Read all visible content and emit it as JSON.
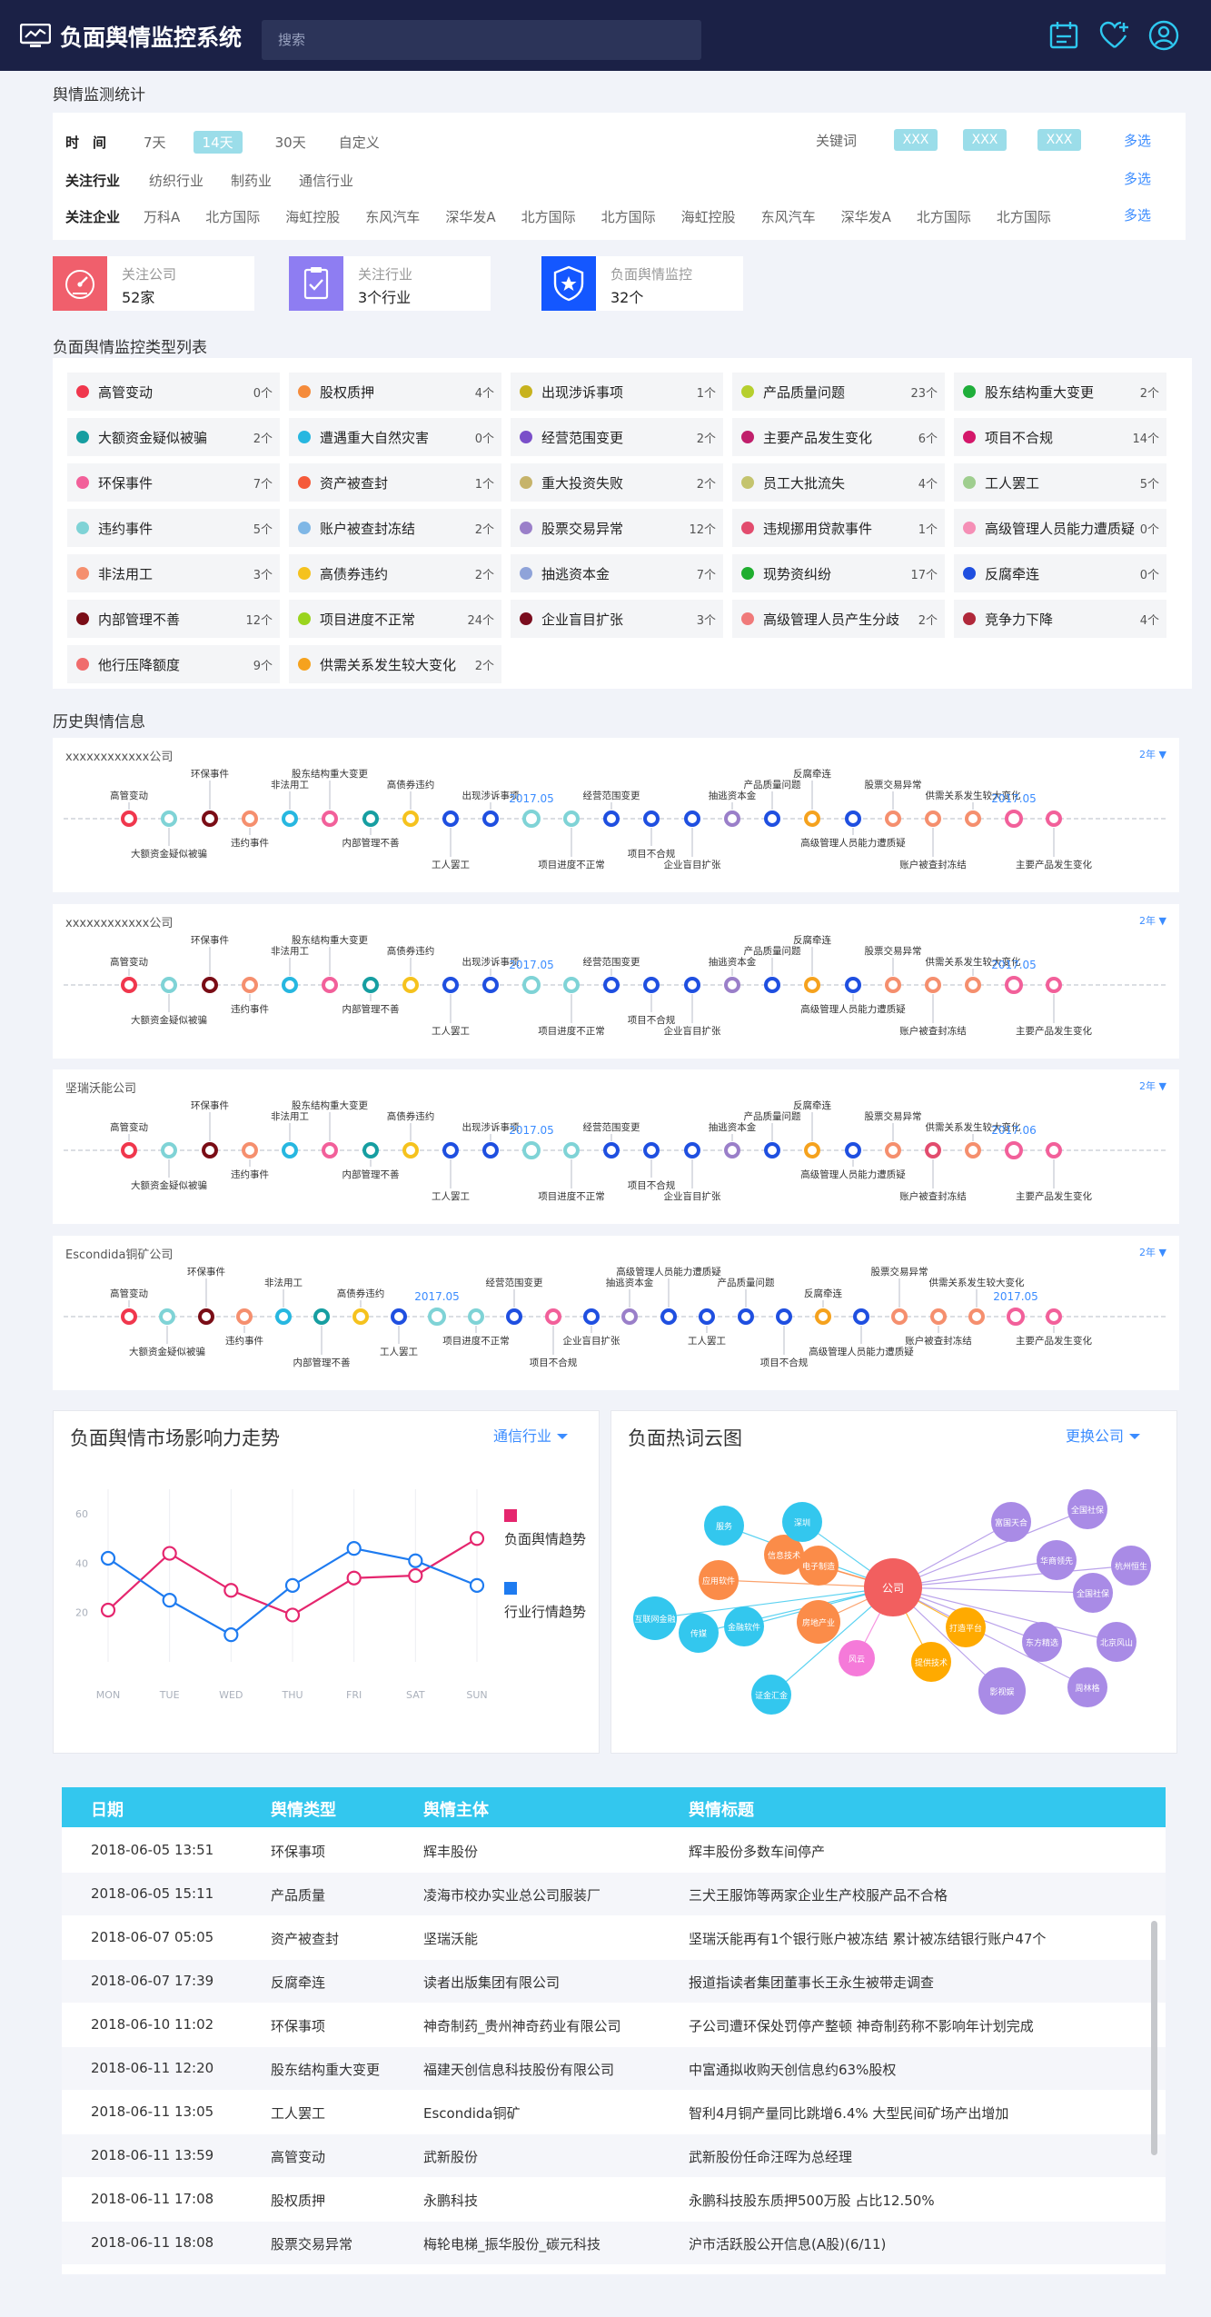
{
  "header": {
    "title": "负面舆情监控系统",
    "search_placeholder": "搜索",
    "icons": [
      "calendar-icon",
      "favorite-add-icon",
      "user-icon"
    ]
  },
  "stats_section": {
    "title": "舆情监测统计"
  },
  "filters": {
    "time": {
      "label": "时　间",
      "options": [
        "7天",
        "14天",
        "30天",
        "自定义"
      ],
      "selected": "14天"
    },
    "keyword": {
      "label": "关键词",
      "values": [
        "XXX",
        "XXX",
        "XXX"
      ],
      "more": "多选"
    },
    "industry": {
      "label": "关注行业",
      "options": [
        "纺织行业",
        "制药业",
        "通信行业"
      ],
      "more": "多选"
    },
    "company": {
      "label": "关注企业",
      "options": [
        "万科A",
        "北方国际",
        "海虹控股",
        "东风汽车",
        "深华发A",
        "北方国际",
        "北方国际",
        "海虹控股",
        "东风汽车",
        "深华发A",
        "北方国际",
        "北方国际"
      ],
      "more": "多选"
    }
  },
  "stat_cards": [
    {
      "label": "关注公司",
      "value": "52家",
      "color": "#f05f6c",
      "icon": "gauge-icon"
    },
    {
      "label": "关注行业",
      "value": "3个行业",
      "color": "#8e7df2",
      "icon": "clipboard-icon"
    },
    {
      "label": "负面舆情监控",
      "value": "32个",
      "color": "#1457ff",
      "icon": "shield-icon"
    }
  ],
  "types_section": {
    "title": "负面舆情监控类型列表"
  },
  "types": [
    {
      "name": "高管变动",
      "count": "0个",
      "color": "#f0374d"
    },
    {
      "name": "股权质押",
      "count": "4个",
      "color": "#f58b3b"
    },
    {
      "name": "出现涉诉事项",
      "count": "1个",
      "color": "#c7b21e"
    },
    {
      "name": "产品质量问题",
      "count": "23个",
      "color": "#b6cf2e"
    },
    {
      "name": "股东结构重大变更",
      "count": "2个",
      "color": "#1fae3a"
    },
    {
      "name": "大额资金疑似被骗",
      "count": "2个",
      "color": "#169ea1"
    },
    {
      "name": "遭遇重大自然灾害",
      "count": "0个",
      "color": "#27b7e0"
    },
    {
      "name": "经营范围变更",
      "count": "2个",
      "color": "#7a4fc9"
    },
    {
      "name": "主要产品发生变化",
      "count": "6个",
      "color": "#c01f6b"
    },
    {
      "name": "项目不合规",
      "count": "14个",
      "color": "#d4176a"
    },
    {
      "name": "环保事件",
      "count": "7个",
      "color": "#f2609a"
    },
    {
      "name": "资产被查封",
      "count": "1个",
      "color": "#f55a3a"
    },
    {
      "name": "重大投资失败",
      "count": "2个",
      "color": "#c6b36a"
    },
    {
      "name": "员工大批流失",
      "count": "4个",
      "color": "#c4c46e"
    },
    {
      "name": "工人罢工",
      "count": "5个",
      "color": "#9fce8f"
    },
    {
      "name": "违约事件",
      "count": "5个",
      "color": "#7fd3d6"
    },
    {
      "name": "账户被查封冻结",
      "count": "2个",
      "color": "#7fb7e6"
    },
    {
      "name": "股票交易异常",
      "count": "12个",
      "color": "#9a7fc9"
    },
    {
      "name": "违规挪用贷款事件",
      "count": "1个",
      "color": "#e24c6e"
    },
    {
      "name": "高级管理人员能力遭质疑",
      "count": "0个",
      "color": "#f58fb6"
    },
    {
      "name": "非法用工",
      "count": "3个",
      "color": "#f58f6e"
    },
    {
      "name": "高债券违约",
      "count": "2个",
      "color": "#f5c21e"
    },
    {
      "name": "抽逃资本金",
      "count": "7个",
      "color": "#8fa3d9"
    },
    {
      "name": "现势资纠纷",
      "count": "17个",
      "color": "#1fae2f"
    },
    {
      "name": "反腐牵连",
      "count": "0个",
      "color": "#1f4fe0"
    },
    {
      "name": "内部管理不善",
      "count": "12个",
      "color": "#7a0d16"
    },
    {
      "name": "项目进度不正常",
      "count": "24个",
      "color": "#9ad41e"
    },
    {
      "name": "企业盲目扩张",
      "count": "3个",
      "color": "#7a0d1e"
    },
    {
      "name": "高级管理人员产生分歧",
      "count": "2个",
      "color": "#f07a7a"
    },
    {
      "name": "竞争力下降",
      "count": "4个",
      "color": "#b0283a"
    },
    {
      "name": "他行压降额度",
      "count": "9个",
      "color": "#f06c6c"
    },
    {
      "name": "供需关系发生较大变化",
      "count": "2个",
      "color": "#f5a21e"
    }
  ],
  "history_section": {
    "title": "历史舆情信息"
  },
  "timelines": [
    {
      "company": "xxxxxxxxxxxx公司",
      "range": "2年 ▼",
      "events": [
        {
          "label": "高管变动",
          "pos": "up",
          "color": "#f0374d"
        },
        {
          "label": "大额资金疑似被骗",
          "pos": "down",
          "color": "#7fd3d6"
        },
        {
          "label": "环保事件",
          "pos": "up",
          "color": "#7a0d16"
        },
        {
          "label": "违约事件",
          "pos": "down",
          "color": "#f58f6e"
        },
        {
          "label": "非法用工",
          "pos": "up",
          "color": "#27b7e0"
        },
        {
          "label": "股东结构重大变更",
          "pos": "up",
          "color": "#f2609a"
        },
        {
          "label": "内部管理不善",
          "pos": "down",
          "color": "#169ea1"
        },
        {
          "label": "高债券违约",
          "pos": "up",
          "color": "#f5c21e"
        },
        {
          "label": "工人罢工",
          "pos": "down",
          "color": "#1f4fe0"
        },
        {
          "label": "出现涉诉事项",
          "pos": "up",
          "color": "#1f4fe0"
        },
        {
          "label": "2017.05",
          "pos": "date",
          "color": "#7fd3d6"
        },
        {
          "label": "项目进度不正常",
          "pos": "down",
          "color": "#7fd3d6"
        },
        {
          "label": "经营范围变更",
          "pos": "up",
          "color": "#1f4fe0"
        },
        {
          "label": "项目不合规",
          "pos": "down",
          "color": "#1f4fe0"
        },
        {
          "label": "企业盲目扩张",
          "pos": "down",
          "color": "#1f4fe0"
        },
        {
          "label": "抽逃资本金",
          "pos": "up",
          "color": "#9a7fc9"
        },
        {
          "label": "产品质量问题",
          "pos": "up",
          "color": "#1f4fe0"
        },
        {
          "label": "反腐牵连",
          "pos": "up",
          "color": "#f5a21e"
        },
        {
          "label": "高级管理人员能力遭质疑",
          "pos": "down",
          "color": "#1f4fe0"
        },
        {
          "label": "股票交易异常",
          "pos": "up",
          "color": "#f58f6e"
        },
        {
          "label": "账户被查封冻结",
          "pos": "down",
          "color": "#f58f6e"
        },
        {
          "label": "供需关系发生较大变化",
          "pos": "up",
          "color": "#f58f6e"
        },
        {
          "label": "2017.05",
          "pos": "date",
          "color": "#f2609a"
        },
        {
          "label": "主要产品发生变化",
          "pos": "down",
          "color": "#f2609a"
        }
      ]
    },
    {
      "company": "xxxxxxxxxxxx公司",
      "range": "2年 ▼",
      "events": [
        {
          "label": "高管变动",
          "pos": "up",
          "color": "#f0374d"
        },
        {
          "label": "大额资金疑似被骗",
          "pos": "down",
          "color": "#7fd3d6"
        },
        {
          "label": "环保事件",
          "pos": "up",
          "color": "#7a0d16"
        },
        {
          "label": "违约事件",
          "pos": "down",
          "color": "#f58f6e"
        },
        {
          "label": "非法用工",
          "pos": "up",
          "color": "#27b7e0"
        },
        {
          "label": "股东结构重大变更",
          "pos": "up",
          "color": "#f2609a"
        },
        {
          "label": "内部管理不善",
          "pos": "down",
          "color": "#169ea1"
        },
        {
          "label": "高债券违约",
          "pos": "up",
          "color": "#f5c21e"
        },
        {
          "label": "工人罢工",
          "pos": "down",
          "color": "#1f4fe0"
        },
        {
          "label": "出现涉诉事项",
          "pos": "up",
          "color": "#1f4fe0"
        },
        {
          "label": "2017.05",
          "pos": "date",
          "color": "#7fd3d6"
        },
        {
          "label": "项目进度不正常",
          "pos": "down",
          "color": "#7fd3d6"
        },
        {
          "label": "经营范围变更",
          "pos": "up",
          "color": "#1f4fe0"
        },
        {
          "label": "项目不合规",
          "pos": "down",
          "color": "#1f4fe0"
        },
        {
          "label": "企业盲目扩张",
          "pos": "down",
          "color": "#1f4fe0"
        },
        {
          "label": "抽逃资本金",
          "pos": "up",
          "color": "#9a7fc9"
        },
        {
          "label": "产品质量问题",
          "pos": "up",
          "color": "#1f4fe0"
        },
        {
          "label": "反腐牵连",
          "pos": "up",
          "color": "#f5a21e"
        },
        {
          "label": "高级管理人员能力遭质疑",
          "pos": "down",
          "color": "#1f4fe0"
        },
        {
          "label": "股票交易异常",
          "pos": "up",
          "color": "#f58f6e"
        },
        {
          "label": "账户被查封冻结",
          "pos": "down",
          "color": "#f58f6e"
        },
        {
          "label": "供需关系发生较大变化",
          "pos": "up",
          "color": "#f58f6e"
        },
        {
          "label": "2017.05",
          "pos": "date",
          "color": "#f2609a"
        },
        {
          "label": "主要产品发生变化",
          "pos": "down",
          "color": "#f2609a"
        }
      ]
    },
    {
      "company": "坚瑞沃能公司",
      "range": "2年 ▼",
      "events": [
        {
          "label": "高管变动",
          "pos": "up",
          "color": "#f0374d"
        },
        {
          "label": "大额资金疑似被骗",
          "pos": "down",
          "color": "#7fd3d6"
        },
        {
          "label": "环保事件",
          "pos": "up",
          "color": "#7a0d16"
        },
        {
          "label": "违约事件",
          "pos": "down",
          "color": "#f58f6e"
        },
        {
          "label": "非法用工",
          "pos": "up",
          "color": "#27b7e0"
        },
        {
          "label": "股东结构重大变更",
          "pos": "up",
          "color": "#f2609a"
        },
        {
          "label": "内部管理不善",
          "pos": "down",
          "color": "#169ea1"
        },
        {
          "label": "高债券违约",
          "pos": "up",
          "color": "#f5c21e"
        },
        {
          "label": "工人罢工",
          "pos": "down",
          "color": "#1f4fe0"
        },
        {
          "label": "出现涉诉事项",
          "pos": "up",
          "color": "#1f4fe0"
        },
        {
          "label": "2017.05",
          "pos": "date",
          "color": "#7fd3d6"
        },
        {
          "label": "项目进度不正常",
          "pos": "down",
          "color": "#7fd3d6"
        },
        {
          "label": "经营范围变更",
          "pos": "up",
          "color": "#1f4fe0"
        },
        {
          "label": "项目不合规",
          "pos": "down",
          "color": "#1f4fe0"
        },
        {
          "label": "企业盲目扩张",
          "pos": "down",
          "color": "#1f4fe0"
        },
        {
          "label": "抽逃资本金",
          "pos": "up",
          "color": "#9a7fc9"
        },
        {
          "label": "产品质量问题",
          "pos": "up",
          "color": "#1f4fe0"
        },
        {
          "label": "反腐牵连",
          "pos": "up",
          "color": "#f5a21e"
        },
        {
          "label": "高级管理人员能力遭质疑",
          "pos": "down",
          "color": "#1f4fe0"
        },
        {
          "label": "股票交易异常",
          "pos": "up",
          "color": "#f58f6e"
        },
        {
          "label": "账户被查封冻结",
          "pos": "down",
          "color": "#e24c6e"
        },
        {
          "label": "供需关系发生较大变化",
          "pos": "up",
          "color": "#f58f6e"
        },
        {
          "label": "2017.06",
          "pos": "date",
          "color": "#f2609a"
        },
        {
          "label": "主要产品发生变化",
          "pos": "down",
          "color": "#f2609a"
        }
      ]
    },
    {
      "company": "Escondida铜矿公司",
      "range": "2年 ▼",
      "events": [
        {
          "label": "高管变动",
          "pos": "up",
          "color": "#f0374d"
        },
        {
          "label": "大额资金疑似被骗",
          "pos": "down",
          "color": "#7fd3d6"
        },
        {
          "label": "环保事件",
          "pos": "up",
          "color": "#7a0d16"
        },
        {
          "label": "违约事件",
          "pos": "down",
          "color": "#f58f6e"
        },
        {
          "label": "非法用工",
          "pos": "up",
          "color": "#27b7e0"
        },
        {
          "label": "内部管理不善",
          "pos": "down",
          "color": "#169ea1"
        },
        {
          "label": "高债券违约",
          "pos": "up",
          "color": "#f5c21e"
        },
        {
          "label": "工人罢工",
          "pos": "down",
          "color": "#1f4fe0"
        },
        {
          "label": "2017.05",
          "pos": "date",
          "color": "#7fd3d6"
        },
        {
          "label": "项目进度不正常",
          "pos": "down",
          "color": "#7fd3d6"
        },
        {
          "label": "经营范围变更",
          "pos": "up",
          "color": "#1f4fe0"
        },
        {
          "label": "项目不合规",
          "pos": "down",
          "color": "#f2609a"
        },
        {
          "label": "企业盲目扩张",
          "pos": "down",
          "color": "#1f4fe0"
        },
        {
          "label": "抽逃资本金",
          "pos": "up",
          "color": "#9a7fc9"
        },
        {
          "label": "高级管理人员能力遭质疑",
          "pos": "up",
          "color": "#1f4fe0"
        },
        {
          "label": "工人罢工",
          "pos": "down",
          "color": "#1f4fe0"
        },
        {
          "label": "产品质量问题",
          "pos": "up",
          "color": "#1f4fe0"
        },
        {
          "label": "项目不合规",
          "pos": "down",
          "color": "#1f4fe0"
        },
        {
          "label": "反腐牵连",
          "pos": "up",
          "color": "#f5a21e"
        },
        {
          "label": "高级管理人员能力遭质疑",
          "pos": "down",
          "color": "#1f4fe0"
        },
        {
          "label": "股票交易异常",
          "pos": "up",
          "color": "#f58f6e"
        },
        {
          "label": "账户被查封冻结",
          "pos": "down",
          "color": "#f58f6e"
        },
        {
          "label": "供需关系发生较大变化",
          "pos": "up",
          "color": "#f58f6e"
        },
        {
          "label": "2017.05",
          "pos": "date",
          "color": "#f2609a"
        },
        {
          "label": "主要产品发生变化",
          "pos": "down",
          "color": "#f2609a"
        }
      ]
    }
  ],
  "trend_panel": {
    "title": "负面舆情市场影响力走势",
    "select": "通信行业"
  },
  "cloud_panel": {
    "title": "负面热词云图",
    "select": "更换公司"
  },
  "chart_data": {
    "type": "line",
    "categories": [
      "MON",
      "TUE",
      "WED",
      "THU",
      "FRI",
      "SAT",
      "SUN"
    ],
    "yticks": [
      20,
      40,
      60
    ],
    "ylim": [
      0,
      70
    ],
    "grid": false,
    "legend": "right",
    "series": [
      {
        "name": "负面舆情趋势",
        "color": "#e5266e",
        "values": [
          21,
          44,
          29,
          19,
          34,
          35,
          50
        ]
      },
      {
        "name": "行业行情趋势",
        "color": "#1e7bf0",
        "values": [
          42,
          25,
          11,
          31,
          46,
          41,
          31
        ]
      }
    ]
  },
  "word_cloud": {
    "center": {
      "label": "公司",
      "color": "#f25f5f"
    },
    "words": [
      {
        "label": "服务",
        "color": "#33c7ee"
      },
      {
        "label": "信息技术",
        "color": "#fb8c49"
      },
      {
        "label": "应用软件",
        "color": "#fb8c49"
      },
      {
        "label": "深圳",
        "color": "#33c7ee"
      },
      {
        "label": "电子制造",
        "color": "#fb8c49"
      },
      {
        "label": "传媒",
        "color": "#33c7ee"
      },
      {
        "label": "互联网金融",
        "color": "#33c7ee"
      },
      {
        "label": "金融软件",
        "color": "#33c7ee"
      },
      {
        "label": "房地产业",
        "color": "#fb8c49"
      },
      {
        "label": "风云",
        "color": "#f57ad9"
      },
      {
        "label": "证金汇金",
        "color": "#33c7ee"
      },
      {
        "label": "打造平台",
        "color": "#ffaa00"
      },
      {
        "label": "提供技术",
        "color": "#ffaa00"
      },
      {
        "label": "富国天合",
        "color": "#a98be6"
      },
      {
        "label": "华商领先",
        "color": "#a98be6"
      },
      {
        "label": "全国社保",
        "color": "#a98be6"
      },
      {
        "label": "杭州恒生",
        "color": "#a98be6"
      },
      {
        "label": "全国社保",
        "color": "#a98be6"
      },
      {
        "label": "东方精选",
        "color": "#a98be6"
      },
      {
        "label": "北京风山",
        "color": "#a98be6"
      },
      {
        "label": "周林格",
        "color": "#a98be6"
      },
      {
        "label": "影视娱",
        "color": "#a98be6"
      }
    ]
  },
  "table": {
    "headers": [
      "日期",
      "舆情类型",
      "舆情主体",
      "舆情标题"
    ],
    "rows": [
      [
        "2018-06-05  13:51",
        "环保事项",
        "辉丰股份",
        "辉丰股份多数车间停产"
      ],
      [
        "2018-06-05 15:11",
        "产品质量",
        "凌海市校办实业总公司服装厂",
        "三犬王服饰等两家企业生产校服产品不合格"
      ],
      [
        "2018-06-07 05:05",
        "资产被查封",
        "坚瑞沃能",
        "坚瑞沃能再有1个银行账户被冻结 累计被冻结银行账户47个"
      ],
      [
        "2018-06-07 17:39",
        "反腐牵连",
        "读者出版集团有限公司",
        "报道指读者集团董事长王永生被带走调查"
      ],
      [
        "2018-06-10 11:02",
        "环保事项",
        "神奇制药_贵州神奇药业有限公司",
        "子公司遭环保处罚停产整顿 神奇制药称不影响年计划完成"
      ],
      [
        "2018-06-11 12:20",
        "股东结构重大变更",
        "福建天创信息科技股份有限公司",
        "中富通拟收购天创信息约63%股权"
      ],
      [
        "2018-06-11 13:05",
        "工人罢工",
        "Escondida铜矿",
        "智利4月铜产量同比跳增6.4% 大型民间矿场产出增加"
      ],
      [
        "2018-06-11 13:59",
        "高管变动",
        "武新股份",
        "武新股份任命汪晖为总经理"
      ],
      [
        "2018-06-11 17:08",
        "股权质押",
        "永鹏科技",
        "永鹏科技股东质押500万股 占比12.50%"
      ],
      [
        "2018-06-11 18:08",
        "股票交易异常",
        "梅轮电梯_振华股份_碳元科技",
        "沪市活跃股公开信息(A股)(6/11)"
      ]
    ]
  }
}
